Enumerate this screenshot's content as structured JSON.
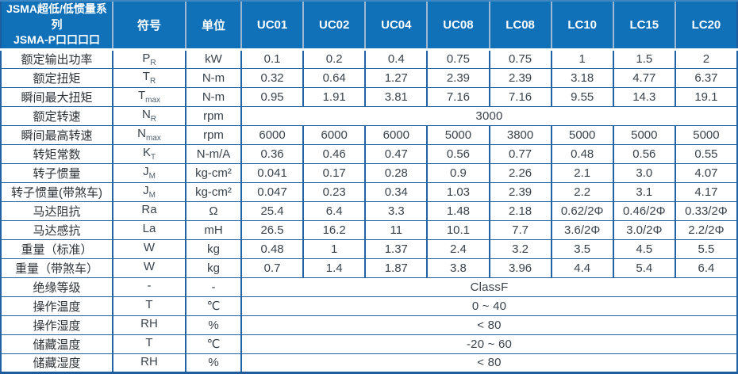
{
  "header": {
    "title_line1": "JSMA超低/低惯量系列",
    "title_line2": "JSMA-P口口口口",
    "symbol_col": "符号",
    "unit_col": "单位",
    "models": [
      "UC01",
      "UC02",
      "UC04",
      "UC08",
      "LC08",
      "LC10",
      "LC15",
      "LC20"
    ]
  },
  "rows": [
    {
      "label": "额定输出功率",
      "sym": "P",
      "sub": "R",
      "unit": "kW",
      "values": [
        "0.1",
        "0.2",
        "0.4",
        "0.75",
        "0.75",
        "1",
        "1.5",
        "2"
      ]
    },
    {
      "label": "额定扭矩",
      "sym": "T",
      "sub": "R",
      "unit": "N-m",
      "values": [
        "0.32",
        "0.64",
        "1.27",
        "2.39",
        "2.39",
        "3.18",
        "4.77",
        "6.37"
      ]
    },
    {
      "label": "瞬间最大扭矩",
      "sym": "T",
      "sub": "max",
      "unit": "N-m",
      "values": [
        "0.95",
        "1.91",
        "3.81",
        "7.16",
        "7.16",
        "9.55",
        "14.3",
        "19.1"
      ]
    },
    {
      "label": "额定转速",
      "sym": "N",
      "sub": "R",
      "unit": "rpm",
      "merged": "3000"
    },
    {
      "label": "瞬间最高转速",
      "sym": "N",
      "sub": "max",
      "unit": "rpm",
      "values": [
        "6000",
        "6000",
        "6000",
        "5000",
        "3800",
        "5000",
        "5000",
        "5000"
      ]
    },
    {
      "label": "转矩常数",
      "sym": "K",
      "sub": "T",
      "unit": "N-m/A",
      "values": [
        "0.36",
        "0.46",
        "0.47",
        "0.56",
        "0.77",
        "0.48",
        "0.56",
        "0.55"
      ]
    },
    {
      "label": "转子惯量",
      "sym": "J",
      "sub": "M",
      "unit": "kg-cm²",
      "values": [
        "0.041",
        "0.17",
        "0.28",
        "0.9",
        "2.26",
        "2.1",
        "3.0",
        "4.07"
      ]
    },
    {
      "label": "转子惯量(带煞车)",
      "sym": "J",
      "sub": "M",
      "unit": "kg-cm²",
      "values": [
        "0.047",
        "0.23",
        "0.34",
        "1.03",
        "2.39",
        "2.2",
        "3.1",
        "4.17"
      ]
    },
    {
      "label": "马达阻抗",
      "sym": "Ra",
      "sub": "",
      "unit": "Ω",
      "values": [
        "25.4",
        "6.4",
        "3.3",
        "1.48",
        "2.18",
        "0.62/2Φ",
        "0.46/2Φ",
        "0.33/2Φ"
      ]
    },
    {
      "label": "马达感抗",
      "sym": "La",
      "sub": "",
      "unit": "mH",
      "values": [
        "26.5",
        "16.2",
        "11",
        "10.1",
        "7.7",
        "3.6/2Φ",
        "3.0/2Φ",
        "2.2/2Φ"
      ]
    },
    {
      "label": "重量（标准）",
      "sym": "W",
      "sub": "",
      "unit": "kg",
      "values": [
        "0.48",
        "1",
        "1.37",
        "2.4",
        "3.2",
        "3.5",
        "4.5",
        "5.5"
      ]
    },
    {
      "label": "重量（带煞车）",
      "sym": "W",
      "sub": "",
      "unit": "kg",
      "values": [
        "0.7",
        "1.4",
        "1.87",
        "3.8",
        "3.96",
        "4.4",
        "5.4",
        "6.4"
      ]
    },
    {
      "label": "绝缘等级",
      "sym": "-",
      "sub": "",
      "unit": "-",
      "merged": "ClassF"
    },
    {
      "label": "操作温度",
      "sym": "T",
      "sub": "",
      "unit": "℃",
      "merged": "0 ~ 40"
    },
    {
      "label": "操作湿度",
      "sym": "RH",
      "sub": "",
      "unit": "%",
      "merged": "< 80"
    },
    {
      "label": "储藏温度",
      "sym": "T",
      "sub": "",
      "unit": "℃",
      "merged": "-20 ~ 60"
    },
    {
      "label": "储藏湿度",
      "sym": "RH",
      "sub": "",
      "unit": "%",
      "merged": "< 80"
    }
  ],
  "colors": {
    "header_bg": "#1070B8",
    "header_text": "#FFFFFF",
    "header_divider": "#9FB8D2",
    "table_border": "#1E5C9E",
    "cell_border": "#2163A4",
    "body_text": "#3A434B"
  }
}
